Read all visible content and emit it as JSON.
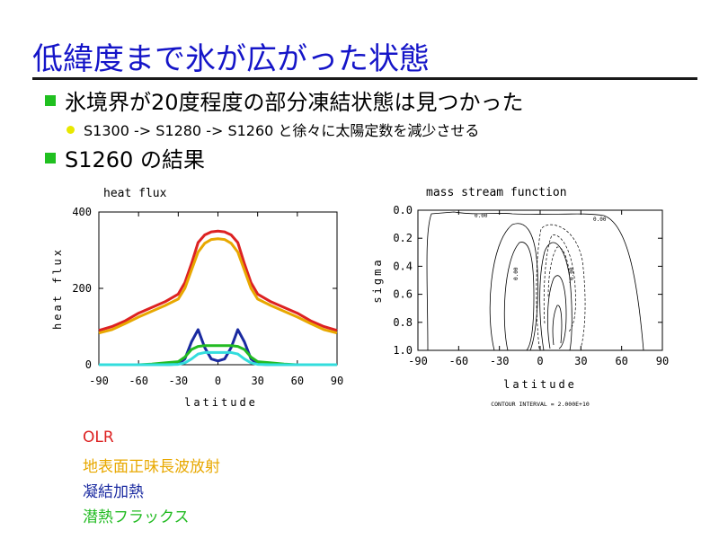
{
  "slide": {
    "title": "低緯度まで氷が広がった状態",
    "bullets": [
      "氷境界が20度程度の部分凍結状態は見つかった",
      "S1300 -> S1280 -> S1260 と徐々に太陽定数を減少させる",
      "S1260 の結果"
    ],
    "colors": {
      "title": "#1515c8",
      "bullet_square": "#20c020",
      "bullet_dot": "#e8e800"
    }
  },
  "legend": [
    {
      "label": "OLR",
      "color": "#dd2222"
    },
    {
      "label": "地表面正味長波放射",
      "color": "#e8a800"
    },
    {
      "label": "凝結加熱",
      "color": "#1a2aa0"
    },
    {
      "label": "潜熱フラックス",
      "color": "#22bb22"
    }
  ],
  "chart_data": [
    {
      "type": "line",
      "title": "heat flux",
      "xlabel": "latitude",
      "ylabel": "heat flux",
      "xlim": [
        -90,
        90
      ],
      "ylim": [
        0,
        400
      ],
      "xticks": [
        "-90",
        "-60",
        "-30",
        "0",
        "30",
        "60",
        "90"
      ],
      "yticks": [
        "0",
        "200",
        "400"
      ],
      "x": [
        -90,
        -80,
        -70,
        -60,
        -50,
        -40,
        -30,
        -25,
        -20,
        -15,
        -10,
        -5,
        0,
        5,
        10,
        15,
        20,
        25,
        30,
        40,
        50,
        60,
        70,
        80,
        90
      ],
      "series": [
        {
          "color": "#dd2222",
          "values": [
            90,
            100,
            115,
            135,
            150,
            165,
            185,
            215,
            265,
            320,
            340,
            348,
            350,
            348,
            340,
            320,
            265,
            215,
            185,
            165,
            150,
            135,
            115,
            100,
            90
          ]
        },
        {
          "color": "#e8a800",
          "values": [
            83,
            92,
            108,
            125,
            140,
            155,
            172,
            200,
            248,
            295,
            318,
            328,
            330,
            328,
            318,
            295,
            248,
            200,
            172,
            155,
            140,
            125,
            108,
            92,
            83
          ]
        },
        {
          "color": "#1a2aa0",
          "values": [
            0,
            0,
            0,
            0,
            0,
            0,
            2,
            15,
            60,
            92,
            45,
            15,
            10,
            15,
            45,
            92,
            60,
            15,
            2,
            0,
            0,
            0,
            0,
            0,
            0
          ]
        },
        {
          "color": "#22bb22",
          "values": [
            0,
            0,
            0,
            0,
            2,
            5,
            8,
            20,
            40,
            48,
            50,
            50,
            50,
            50,
            50,
            48,
            40,
            20,
            8,
            5,
            2,
            0,
            0,
            0,
            0
          ]
        },
        {
          "color": "#33dddd",
          "values": [
            0,
            0,
            0,
            0,
            0,
            0,
            1,
            5,
            15,
            28,
            32,
            32,
            32,
            32,
            32,
            28,
            15,
            5,
            1,
            0,
            0,
            0,
            0,
            0,
            0
          ]
        }
      ]
    },
    {
      "type": "contour",
      "title": "mass stream function",
      "xlabel": "latitude",
      "ylabel": "sigma",
      "xlim": [
        -90,
        90
      ],
      "ylim": [
        1.0,
        0.0
      ],
      "xticks": [
        "-90",
        "-60",
        "-30",
        "0",
        "30",
        "60",
        "90"
      ],
      "yticks": [
        "0.0",
        "0.2",
        "0.4",
        "0.6",
        "0.8",
        "1.0"
      ],
      "contour_labels": [
        "0.00",
        "0.00",
        "0.00",
        "0.00"
      ],
      "footnote": "CONTOUR INTERVAL = 2.000E+10"
    }
  ]
}
